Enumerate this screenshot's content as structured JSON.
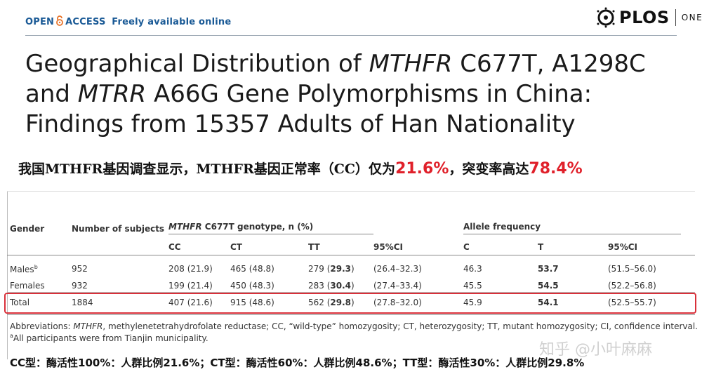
{
  "header": {
    "open_access_1": "OPEN",
    "open_access_2": "ACCESS",
    "freely": "Freely available online",
    "plos": "PLOS",
    "one": "ONE"
  },
  "title": {
    "p1": "Geographical Distribution of ",
    "gene1": "MTHFR",
    "p2": " C677T, A1298C and ",
    "gene2": "MTRR",
    "p3": " A66G Gene Polymorphisms in China: Findings from 15357 Adults of Han Nationality"
  },
  "note_cn": {
    "text": "我国MTHFR基因调查显示，MTHFR基因正常率（CC）仅为",
    "cc_rate": "21.6%",
    "mid": "，突变率高达",
    "mut_rate": "78.4%"
  },
  "table": {
    "headers": {
      "gender": "Gender",
      "subjects": "Number of subjects",
      "genotype_gene": "MTHFR",
      "genotype_rest": " C677T genotype, n (%)",
      "allele": "Allele frequency"
    },
    "subheaders": [
      "CC",
      "CT",
      "TT",
      "95%CI",
      "C",
      "T",
      "95%CI"
    ],
    "rows": [
      {
        "gender": "Males",
        "sup": "b",
        "n": "952",
        "cc": "208 (21.9)",
        "ct": "465 (48.8)",
        "tt_n": "279 (",
        "tt_p": "29.3",
        "tt_close": ")",
        "ci1": "(26.4–32.3)",
        "c": "46.3",
        "t": "53.7",
        "ci2": "(51.5–56.0)"
      },
      {
        "gender": "Females",
        "sup": "",
        "n": "932",
        "cc": "199 (21.4)",
        "ct": "450 (48.3)",
        "tt_n": "283 (",
        "tt_p": "30.4",
        "tt_close": ")",
        "ci1": "(27.4–33.4)",
        "c": "45.5",
        "t": "54.5",
        "ci2": "(52.2–56.8)"
      },
      {
        "gender": "Total",
        "sup": "",
        "n": "1884",
        "cc": "407 (21.6)",
        "ct": "915 (48.6)",
        "tt_n": "562 (",
        "tt_p": "29.8",
        "tt_close": ")",
        "ci1": "(27.8–32.0)",
        "c": "45.9",
        "t": "54.1",
        "ci2": "(52.5–55.7)"
      }
    ],
    "footnote_1_pre": "Abbreviations: ",
    "footnote_1_gene": "MTHFR",
    "footnote_1_rest": ", methylenetetrahydrofolate reductase; CC, “wild-type” homozygosity; CT, heterozygosity; TT, mutant homozygosity; CI, confidence interval.",
    "footnote_2_sup": "a",
    "footnote_2": "All participants were from Tianjin municipality."
  },
  "bottom_cn": "CC型：酶活性100%：人群比例21.6%；CT型：酶活性60%：人群比例48.6%；TT型：酶活性30%：人群比例29.8%",
  "watermark": "知乎 @小叶麻麻",
  "colors": {
    "brand_blue": "#1a5a96",
    "highlight_red": "#d9303a",
    "note_red": "#e0202a"
  }
}
